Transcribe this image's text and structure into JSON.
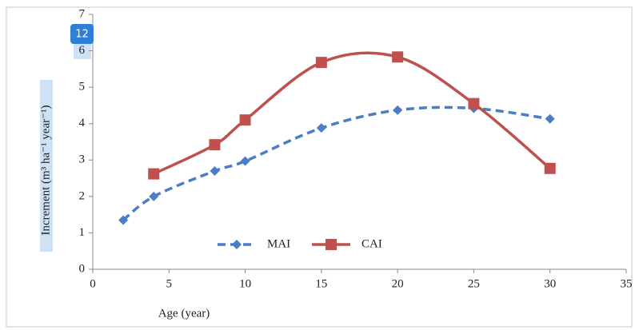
{
  "badge": "12",
  "chart_data": {
    "type": "line",
    "xlabel": "Age (year)",
    "ylabel": "Increment   (m³ ha⁻¹ year⁻¹)",
    "xlim": [
      0,
      35
    ],
    "xticks": [
      0,
      5,
      10,
      15,
      20,
      25,
      30,
      35
    ],
    "ylim": [
      0,
      7
    ],
    "yticks": [
      0,
      1,
      2,
      3,
      4,
      5,
      6,
      7
    ],
    "legend": "bottom",
    "series": [
      {
        "name": "MAI",
        "color": "#4a7ec4",
        "dashed": true,
        "marker": "diamond",
        "x": [
          2,
          4,
          8,
          10,
          15,
          20,
          25,
          30
        ],
        "values": [
          1.35,
          2.0,
          2.7,
          2.97,
          3.88,
          4.37,
          4.42,
          4.13
        ]
      },
      {
        "name": "CAI",
        "color": "#c0504d",
        "dashed": false,
        "marker": "square",
        "x": [
          4,
          8,
          10,
          15,
          20,
          25,
          30
        ],
        "values": [
          2.62,
          3.42,
          4.1,
          5.68,
          5.83,
          4.55,
          2.77
        ]
      }
    ]
  }
}
